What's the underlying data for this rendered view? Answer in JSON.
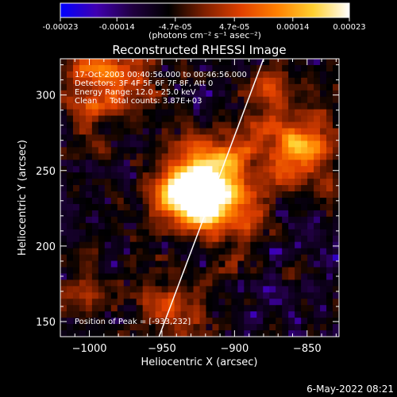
{
  "colorbar": {
    "ticks": [
      "-0.00023",
      "-0.00014",
      "-4.7e-05",
      "4.7e-05",
      "0.00014",
      "0.00023"
    ],
    "unit_label": "(photons cm⁻² s⁻¹ asec⁻²)",
    "range": [
      -0.00023,
      0.00023
    ],
    "palette": [
      "#0000ff",
      "#4000b0",
      "#200040",
      "#000000",
      "#802000",
      "#e04000",
      "#ff8000",
      "#ffd030",
      "#ffffff"
    ]
  },
  "chart_data": {
    "type": "heatmap",
    "title": "Reconstructed RHESSI Image",
    "xlabel": "Heliocentric X (arcsec)",
    "ylabel": "Heliocentric Y (arcsec)",
    "xlim": [
      -1020,
      -828
    ],
    "ylim": [
      140,
      324
    ],
    "xticks": [
      -1000,
      -950,
      -900,
      -850
    ],
    "xtick_labels": [
      "−1000",
      "−950",
      "−900",
      "−850"
    ],
    "yticks": [
      150,
      200,
      250,
      300
    ],
    "ytick_labels": [
      "150",
      "200",
      "250",
      "300"
    ],
    "limb_line": {
      "x": [
        -952,
        -880
      ],
      "y": [
        140,
        324
      ]
    },
    "peak_position": [
      -933,
      232
    ],
    "annotations": [
      "17-Oct-2003 00:40:56.000 to 00:46:56.000",
      "Detectors: 3F 4F 5F 6F 7F 8F, Att 0",
      "Energy Range: 12.0 - 25.0 keV",
      "Clean     Total counts: 3.87E+03"
    ],
    "peak_label": "Position of Peak = [-933,232]"
  },
  "footer": {
    "date": "6-May-2022 08:21"
  }
}
